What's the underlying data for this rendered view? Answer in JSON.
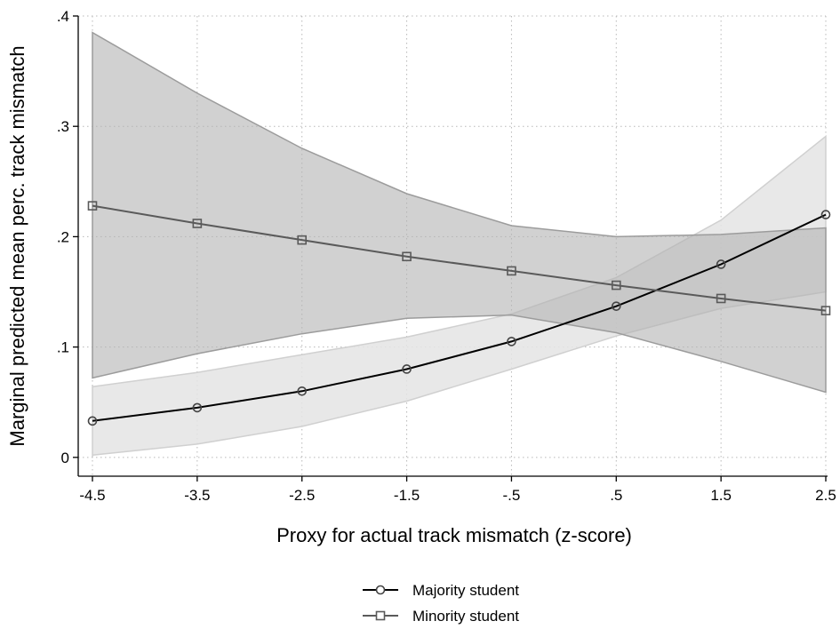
{
  "chart_data": {
    "type": "line",
    "xlabel": "Proxy for actual track mismatch (z-score)",
    "ylabel": "Marginal predicted mean perc. track mismatch",
    "x": [
      -4.5,
      -3.5,
      -2.5,
      -1.5,
      -0.5,
      0.5,
      1.5,
      2.5
    ],
    "xtick_labels": [
      "-4.5",
      "-3.5",
      "-2.5",
      "-1.5",
      "-.5",
      ".5",
      "1.5",
      "2.5"
    ],
    "yticks": [
      0,
      0.1,
      0.2,
      0.3,
      0.4
    ],
    "ytick_labels": [
      "0",
      ".1",
      ".2",
      ".3",
      ".4"
    ],
    "xlim": [
      -4.5,
      2.5
    ],
    "ylim": [
      -0.009,
      0.4
    ],
    "grid": true,
    "legend_position": "bottom-center",
    "series": [
      {
        "name": "Majority student",
        "marker": "circle",
        "line_color": "#000000",
        "band_color": "#e4e4e4",
        "values": [
          0.033,
          0.045,
          0.06,
          0.08,
          0.105,
          0.137,
          0.175,
          0.22
        ],
        "ci_lower": [
          0.002,
          0.012,
          0.028,
          0.051,
          0.08,
          0.11,
          0.135,
          0.15
        ],
        "ci_upper": [
          0.064,
          0.077,
          0.093,
          0.109,
          0.13,
          0.163,
          0.215,
          0.291
        ]
      },
      {
        "name": "Minority student",
        "marker": "square",
        "line_color": "#5a5a5a",
        "band_color": "#b3b3b3",
        "values": [
          0.228,
          0.212,
          0.197,
          0.182,
          0.169,
          0.156,
          0.144,
          0.133
        ],
        "ci_lower": [
          0.072,
          0.094,
          0.112,
          0.126,
          0.129,
          0.113,
          0.087,
          0.059
        ],
        "ci_upper": [
          0.385,
          0.33,
          0.28,
          0.239,
          0.21,
          0.2,
          0.202,
          0.208
        ]
      }
    ]
  }
}
